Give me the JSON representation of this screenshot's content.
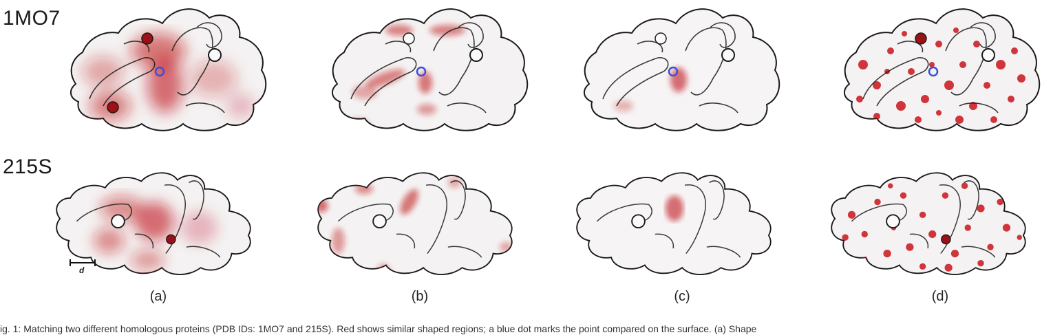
{
  "rows": [
    "1MO7",
    "215S"
  ],
  "panels": [
    "(a)",
    "(b)",
    "(c)",
    "(d)"
  ],
  "scale_label": "d",
  "caption": "ig. 1: Matching two different homologous proteins (PDB IDs: 1MO7 and 215S). Red shows similar shaped regions; a blue dot marks the point compared on the surface. (a) Shape",
  "colors": {
    "highlight": "#c0141a",
    "marker": "#3a4fd6",
    "outline": "#1a1a1a",
    "surface": "#f4f2f2"
  }
}
